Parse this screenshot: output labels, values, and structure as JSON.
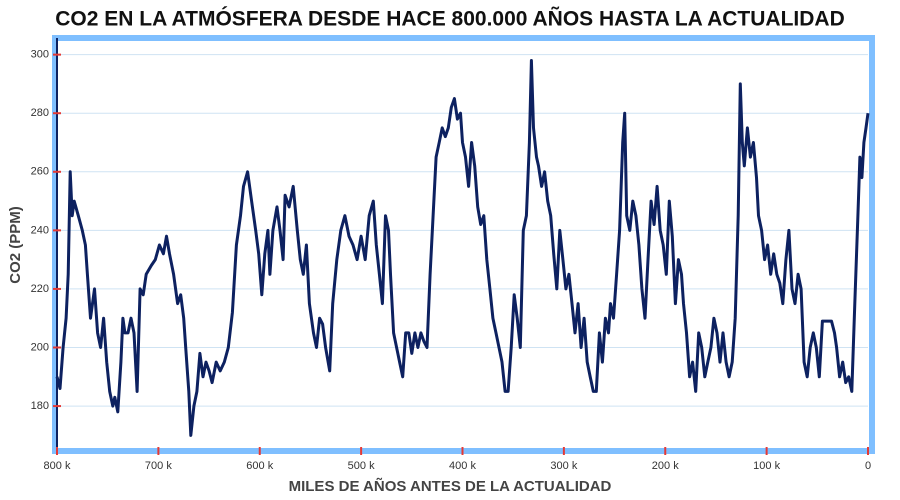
{
  "chart_data": {
    "type": "line",
    "title": "CO2 EN LA ATMÓSFERA DESDE HACE 800.000 AÑOS HASTA LA ACTUALIDAD",
    "x_label": "MILES DE AÑOS ANTES DE LA ACTUALIDAD",
    "y_label": "CO2 (PPM)",
    "xlim": [
      800,
      0
    ],
    "ylim": [
      165,
      305
    ],
    "xticks": [
      {
        "value": 800,
        "label": "800 k"
      },
      {
        "value": 700,
        "label": "700 k"
      },
      {
        "value": 600,
        "label": "600 k"
      },
      {
        "value": 500,
        "label": "500 k"
      },
      {
        "value": 400,
        "label": "400 k"
      },
      {
        "value": 300,
        "label": "300 k"
      },
      {
        "value": 200,
        "label": "200 k"
      },
      {
        "value": 100,
        "label": "100 k"
      },
      0
    ],
    "yticks": [
      180,
      200,
      220,
      240,
      260,
      280,
      300
    ],
    "grid": true,
    "x": [
      800,
      797,
      794,
      791,
      789,
      787,
      785,
      783,
      779,
      775,
      772,
      770,
      767,
      763,
      760,
      757,
      754,
      751,
      748,
      745,
      743,
      740,
      737,
      735,
      733,
      730,
      727,
      724,
      721,
      718,
      715,
      712,
      707,
      703,
      699,
      695,
      692,
      689,
      685,
      681,
      678,
      675,
      673,
      670,
      668,
      665,
      662,
      659,
      656,
      653,
      650,
      647,
      643,
      639,
      635,
      631,
      627,
      623,
      619,
      616,
      612,
      608,
      604,
      601,
      598,
      595,
      592,
      590,
      587,
      583,
      580,
      577,
      575,
      571,
      567,
      563,
      560,
      557,
      554,
      551,
      547,
      544,
      541,
      538,
      535,
      531,
      528,
      524,
      520,
      516,
      512,
      508,
      504,
      500,
      496,
      492,
      488,
      485,
      482,
      479,
      476,
      473,
      471,
      468,
      465,
      462,
      459,
      456,
      453,
      450,
      447,
      444,
      441,
      438,
      435,
      432,
      429,
      426,
      423,
      420,
      417,
      414,
      411,
      408,
      405,
      402,
      400,
      397,
      394,
      391,
      388,
      385,
      382,
      379,
      376,
      373,
      370,
      367,
      364,
      361,
      358,
      355,
      352,
      349,
      346,
      343,
      340,
      337,
      334,
      332,
      330,
      327,
      325,
      322,
      319,
      316,
      313,
      310,
      307,
      304,
      301,
      298,
      295,
      292,
      289,
      286,
      283,
      280,
      277,
      274,
      271,
      268,
      265,
      262,
      259,
      256,
      254,
      251,
      248,
      245,
      242,
      240,
      238,
      235,
      232,
      229,
      226,
      223,
      220,
      217,
      214,
      211,
      208,
      205,
      202,
      199,
      196,
      193,
      190,
      187,
      184,
      182,
      179,
      176,
      173,
      170,
      167,
      164,
      161,
      158,
      155,
      152,
      149,
      146,
      143,
      140,
      137,
      134,
      131,
      128,
      126,
      124,
      122,
      119,
      116,
      113,
      110,
      108,
      105,
      102,
      99,
      96,
      93,
      90,
      87,
      84,
      81,
      78,
      75,
      72,
      69,
      66,
      63,
      60,
      57,
      54,
      51,
      48,
      45,
      42,
      39,
      36,
      33,
      31,
      28,
      25,
      22,
      19,
      16,
      13,
      10,
      8,
      6,
      4,
      2,
      0
    ],
    "series": [
      {
        "name": "CO2",
        "color": "#0d2160",
        "values": [
          190,
          186,
          200,
          210,
          225,
          260,
          245,
          250,
          245,
          240,
          235,
          225,
          210,
          220,
          205,
          200,
          210,
          195,
          185,
          180,
          183,
          178,
          195,
          210,
          205,
          205,
          210,
          205,
          185,
          220,
          218,
          225,
          228,
          230,
          235,
          232,
          238,
          232,
          225,
          215,
          218,
          210,
          200,
          185,
          170,
          180,
          185,
          198,
          190,
          195,
          192,
          188,
          195,
          192,
          195,
          200,
          212,
          235,
          245,
          255,
          260,
          250,
          240,
          232,
          218,
          232,
          240,
          225,
          240,
          248,
          240,
          230,
          252,
          248,
          255,
          240,
          230,
          225,
          235,
          215,
          205,
          200,
          210,
          208,
          200,
          192,
          215,
          230,
          240,
          245,
          238,
          235,
          230,
          238,
          230,
          245,
          250,
          235,
          225,
          215,
          245,
          240,
          225,
          205,
          200,
          195,
          190,
          205,
          205,
          198,
          205,
          200,
          205,
          202,
          200,
          225,
          245,
          265,
          270,
          275,
          272,
          275,
          282,
          285,
          278,
          280,
          270,
          265,
          255,
          270,
          262,
          248,
          242,
          245,
          230,
          220,
          210,
          205,
          200,
          195,
          185,
          185,
          200,
          218,
          210,
          200,
          240,
          245,
          270,
          298,
          275,
          265,
          262,
          255,
          260,
          250,
          245,
          232,
          220,
          240,
          230,
          220,
          225,
          215,
          205,
          215,
          200,
          210,
          195,
          190,
          185,
          185,
          205,
          195,
          210,
          205,
          215,
          210,
          225,
          240,
          270,
          280,
          245,
          240,
          250,
          245,
          235,
          220,
          210,
          230,
          250,
          242,
          255,
          240,
          235,
          225,
          250,
          238,
          215,
          230,
          225,
          215,
          205,
          190,
          195,
          185,
          205,
          200,
          190,
          195,
          200,
          210,
          205,
          195,
          205,
          195,
          190,
          195,
          210,
          245,
          290,
          270,
          262,
          275,
          265,
          270,
          258,
          245,
          240,
          230,
          235,
          225,
          232,
          225,
          222,
          215,
          230,
          240,
          220,
          215,
          225,
          220,
          195,
          190,
          200,
          205,
          200,
          190,
          209,
          209,
          209,
          209,
          205,
          200,
          190,
          195,
          188,
          190,
          185,
          215,
          245,
          265,
          258,
          270,
          275,
          280
        ]
      }
    ]
  }
}
